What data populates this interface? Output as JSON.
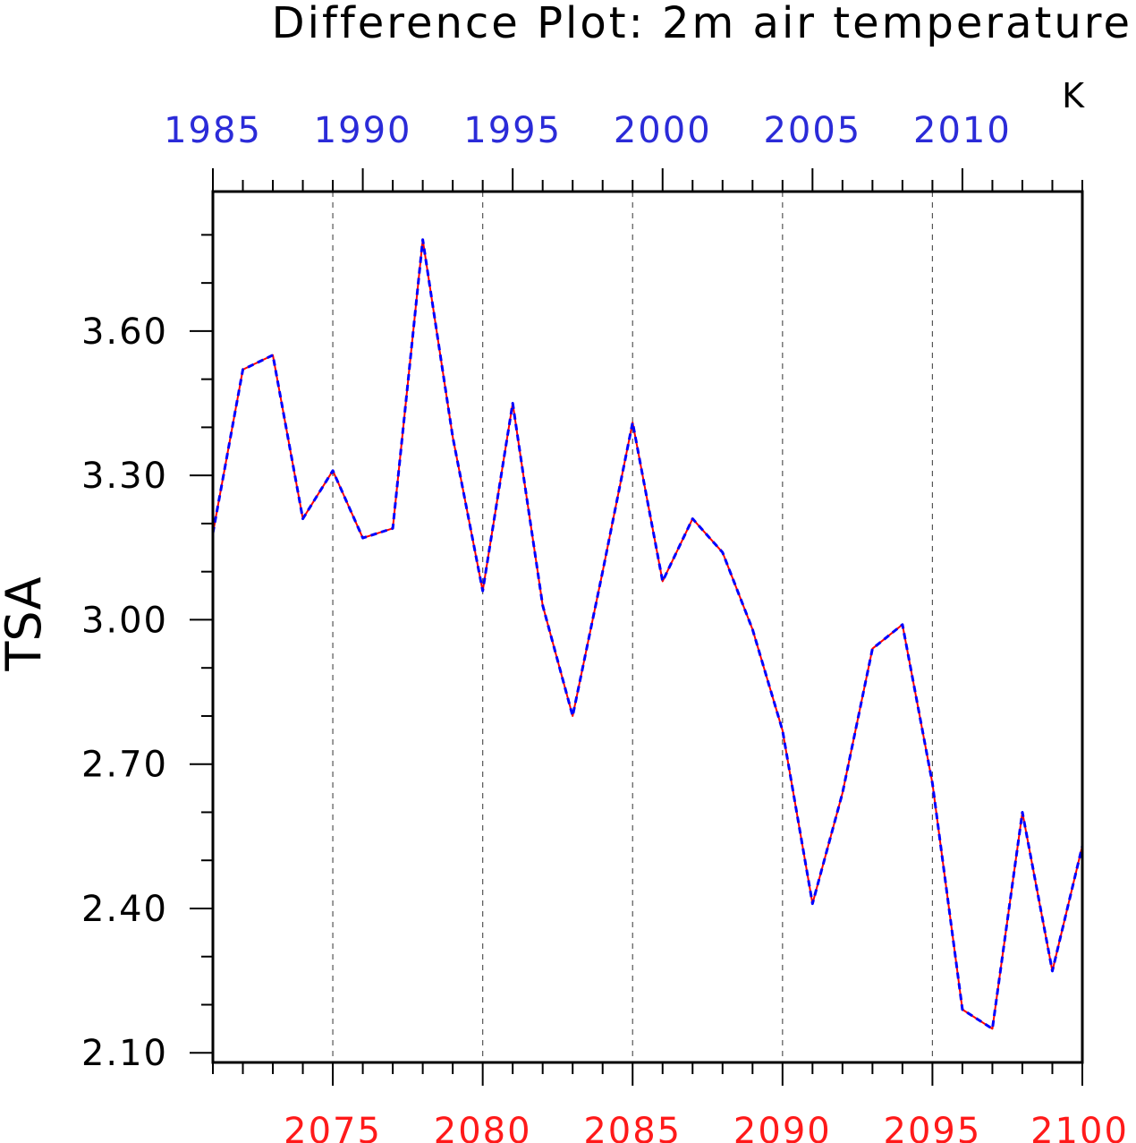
{
  "chart_data": {
    "type": "line",
    "title": "Difference Plot: 2m air temperature",
    "units": "K",
    "ylabel": "TSA",
    "xlabel": "",
    "ylim": [
      2.08,
      3.89
    ],
    "xlim": [
      2071,
      2100
    ],
    "y_ticks": [
      "2.10",
      "2.40",
      "2.70",
      "3.00",
      "3.30",
      "3.60"
    ],
    "y_tick_values": [
      2.1,
      2.4,
      2.7,
      3.0,
      3.3,
      3.6
    ],
    "x_bottom_ticks": [
      "2075",
      "2080",
      "2085",
      "2090",
      "2095",
      "2100"
    ],
    "x_bottom_tick_values": [
      2075,
      2080,
      2085,
      2090,
      2095,
      2100
    ],
    "x_top_ticks": [
      "1985",
      "1990",
      "1995",
      "2000",
      "2005",
      "2010"
    ],
    "x_top_tick_values": [
      2071,
      2076,
      2081,
      2086,
      2091,
      2096
    ],
    "grid": "vertical dashed at major ticks",
    "x": [
      2071,
      2072,
      2073,
      2074,
      2075,
      2076,
      2077,
      2078,
      2079,
      2080,
      2081,
      2082,
      2083,
      2084,
      2085,
      2086,
      2087,
      2088,
      2089,
      2090,
      2091,
      2092,
      2093,
      2094,
      2095,
      2096,
      2097,
      2098,
      2099,
      2100
    ],
    "series": [
      {
        "color": "#ff0000",
        "style": "solid",
        "values": [
          3.18,
          3.52,
          3.55,
          3.21,
          3.31,
          3.17,
          3.19,
          3.79,
          3.38,
          3.06,
          3.45,
          3.03,
          2.8,
          3.1,
          3.41,
          3.08,
          3.21,
          3.14,
          2.98,
          2.77,
          2.41,
          2.64,
          2.94,
          2.99,
          2.66,
          2.19,
          2.15,
          2.6,
          2.27,
          2.53
        ]
      },
      {
        "color": "#0000ff",
        "style": "dashed",
        "values": [
          3.18,
          3.52,
          3.55,
          3.21,
          3.31,
          3.17,
          3.19,
          3.79,
          3.38,
          3.06,
          3.45,
          3.03,
          2.8,
          3.1,
          3.41,
          3.08,
          3.21,
          3.14,
          2.98,
          2.77,
          2.41,
          2.64,
          2.94,
          2.99,
          2.66,
          2.19,
          2.15,
          2.6,
          2.27,
          2.53
        ]
      }
    ],
    "colors": {
      "top_axis": "#2b2bd8",
      "bottom_axis": "#ff1a1a",
      "frame": "#000000",
      "grid": "#555555"
    }
  }
}
